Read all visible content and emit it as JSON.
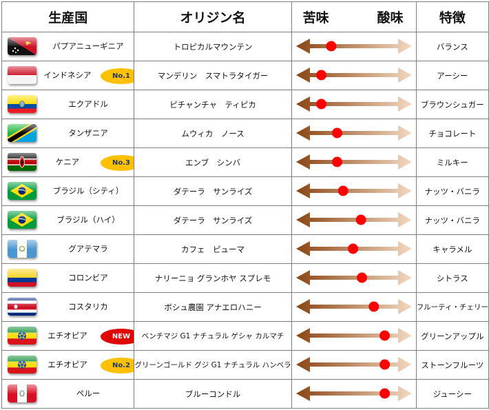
{
  "headers": {
    "country": "生産国",
    "origin": "オリジン名",
    "bitter": "苦味",
    "acidity": "酸味",
    "feature": "特徴"
  },
  "colors": {
    "arrow_dark": "#8b4513",
    "arrow_light": "#f3d9c3",
    "dot": "#ff0000",
    "badge_gold": "#ffc000",
    "badge_new": "#e00000"
  },
  "rows": [
    {
      "country": "パプアニューギニア",
      "flag": "papua-new-guinea",
      "origin": "トロピカルマウンテン",
      "feature": "バランス",
      "taste": 0.27
    },
    {
      "country": "インドネシア",
      "flag": "indonesia",
      "badge": "No.1",
      "badge_style": "gold",
      "origin": "マンデリン　スマトラタイガー",
      "feature": "アーシー",
      "taste": 0.17
    },
    {
      "country": "エクアドル",
      "flag": "ecuador",
      "origin": "ピチャンチャ　ティピカ",
      "feature": "ブラウンシュガー",
      "taste": 0.17
    },
    {
      "country": "タンザニア",
      "flag": "tanzania",
      "origin": "ムウィカ　ノース",
      "feature": "チョコレート",
      "taste": 0.33
    },
    {
      "country": "ケニア",
      "flag": "kenya",
      "badge": "No.3",
      "badge_style": "gold",
      "origin": "エンブ　シンバ",
      "feature": "ミルキー",
      "taste": 0.33
    },
    {
      "country": "ブラジル（シティ）",
      "flag": "brazil",
      "origin": "ダテーラ　サンライズ",
      "feature": "ナッツ・バニラ",
      "taste": 0.39
    },
    {
      "country": "ブラジル（ハイ）",
      "flag": "brazil",
      "origin": "ダテーラ　サンライズ",
      "feature": "ナッツ・バニラ",
      "taste": 0.57
    },
    {
      "country": "グアテマラ",
      "flag": "guatemala",
      "origin": "カフェ　ピューマ",
      "feature": "キャラメル",
      "taste": 0.49
    },
    {
      "country": "コロンビア",
      "flag": "colombia",
      "origin": "ナリーニョ グランホヤ スプレモ",
      "feature": "シトラス",
      "taste": 0.58
    },
    {
      "country": "コスタリカ",
      "flag": "costa-rica",
      "origin": "ボシュ農園 アナエロハニー",
      "feature": "フルーティ・チェリー",
      "taste": 0.7
    },
    {
      "country": "エチオピア",
      "flag": "ethiopia",
      "badge": "NEW",
      "badge_style": "new",
      "origin": "ベンチマジ G1 ナチュラル ゲシャ カルマチ",
      "feature": "グリーンアップル",
      "taste": 0.81
    },
    {
      "country": "エチオピア",
      "flag": "ethiopia",
      "badge": "No.2",
      "badge_style": "gold",
      "origin": "グリーンゴールド グジ G1 ナチュラル ハンベラ",
      "feature": "ストーンフルーツ",
      "taste": 0.81
    },
    {
      "country": "ペルー",
      "flag": "peru",
      "origin": "ブルーコンドル",
      "feature": "ジューシー",
      "taste": 0.81
    }
  ]
}
